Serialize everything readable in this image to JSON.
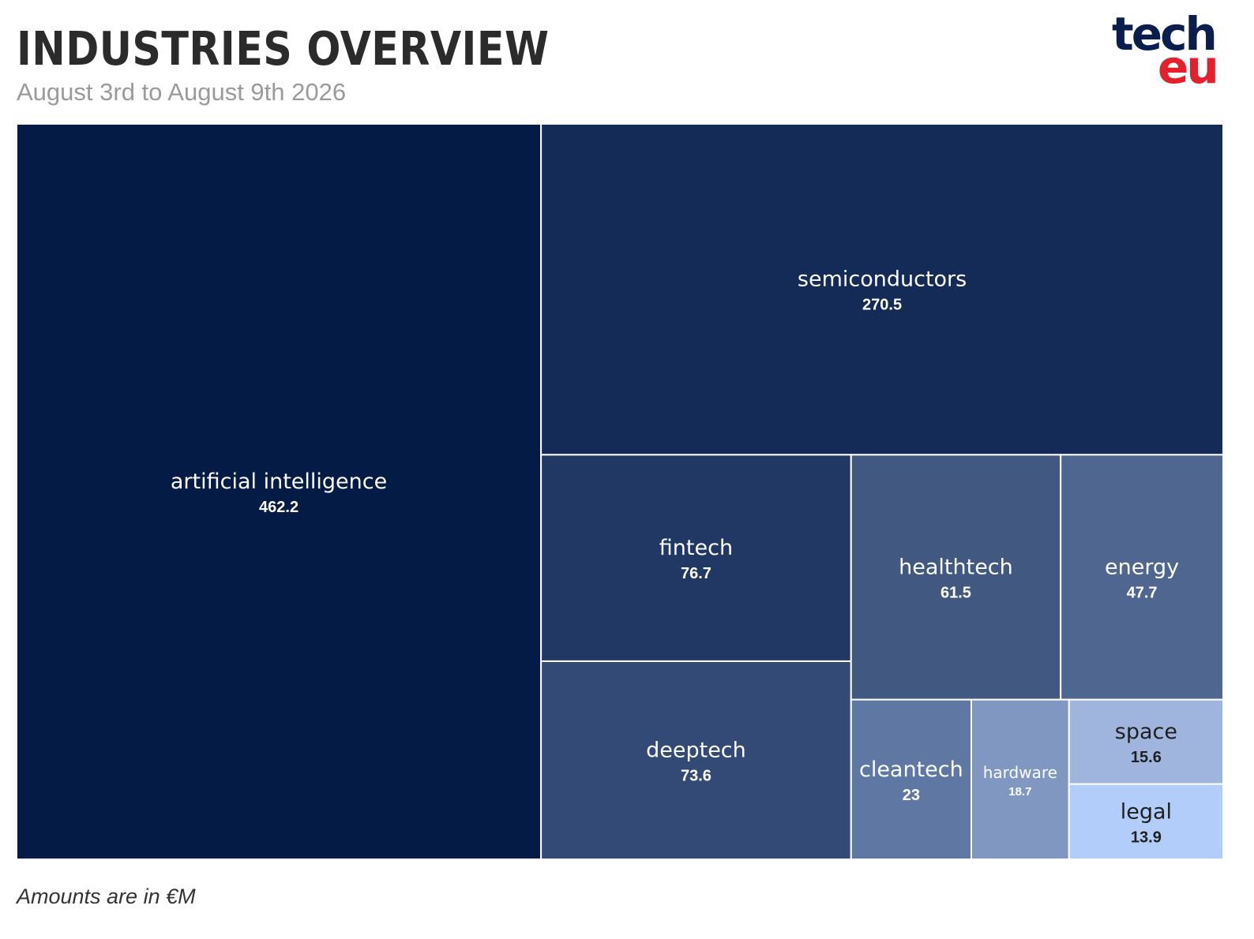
{
  "header": {
    "title": "INDUSTRIES OVERVIEW",
    "subtitle": "August 3rd to August 9th 2026"
  },
  "logo": {
    "line1": "tech",
    "line2": "eu",
    "colors": {
      "primary": "#0b1d4d",
      "accent": "#e4202c"
    }
  },
  "footer": {
    "note": "Amounts are in €M"
  },
  "chart_data": {
    "type": "treemap",
    "title": "INDUSTRIES OVERVIEW",
    "subtitle": "August 3rd to August 9th 2026",
    "unit": "€M",
    "items": [
      {
        "label": "artificial intelligence",
        "value": 462.2,
        "color": "#041b46",
        "text_color": "#ffffff"
      },
      {
        "label": "semiconductors",
        "value": 270.5,
        "color": "#142a57",
        "text_color": "#ffffff"
      },
      {
        "label": "fintech",
        "value": 76.7,
        "color": "#223864",
        "text_color": "#ffffff"
      },
      {
        "label": "deeptech",
        "value": 73.6,
        "color": "#324a75",
        "text_color": "#ffffff"
      },
      {
        "label": "healthtech",
        "value": 61.5,
        "color": "#415881",
        "text_color": "#ffffff"
      },
      {
        "label": "energy",
        "value": 47.7,
        "color": "#4f6691",
        "text_color": "#ffffff"
      },
      {
        "label": "cleantech",
        "value": 23,
        "color": "#5f77a3",
        "text_color": "#ffffff"
      },
      {
        "label": "hardware",
        "value": 18.7,
        "color": "#7f97c1",
        "text_color": "#ffffff"
      },
      {
        "label": "space",
        "value": 15.6,
        "color": "#a0b5de",
        "text_color": "#1f1f1f"
      },
      {
        "label": "legal",
        "value": 13.9,
        "color": "#b3cdfa",
        "text_color": "#1f1f1f"
      }
    ]
  }
}
